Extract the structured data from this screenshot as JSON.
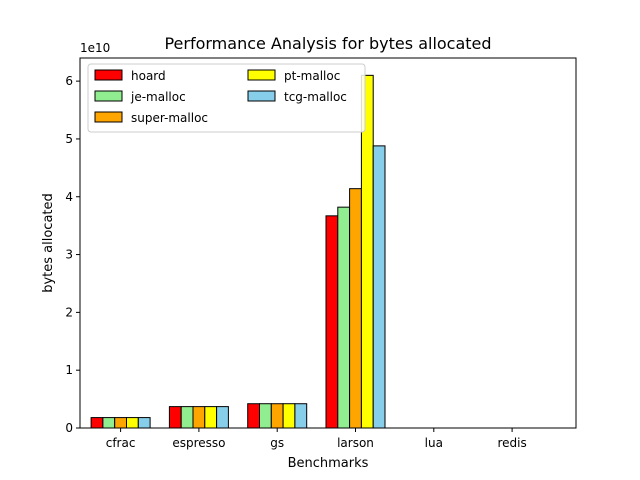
{
  "chart_data": {
    "type": "bar",
    "title": "Performance Analysis for bytes allocated",
    "xlabel": "Benchmarks",
    "ylabel": "bytes allocated",
    "y_multiplier_label": "1e10",
    "categories": [
      "cfrac",
      "espresso",
      "gs",
      "larson",
      "lua",
      "redis"
    ],
    "yticks": [
      0,
      1,
      2,
      3,
      4,
      5,
      6
    ],
    "ylim": [
      0,
      6.4
    ],
    "grid": false,
    "legend_position": "top-left",
    "legend_columns": 2,
    "series": [
      {
        "name": "hoard",
        "color": "#ff0000",
        "values": [
          0.18,
          0.37,
          0.42,
          3.67,
          0.0,
          0.0
        ]
      },
      {
        "name": "je-malloc",
        "color": "#90ee90",
        "values": [
          0.18,
          0.37,
          0.42,
          3.82,
          0.0,
          0.0
        ]
      },
      {
        "name": "super-malloc",
        "color": "#ffa500",
        "values": [
          0.18,
          0.37,
          0.42,
          4.14,
          0.0,
          0.0
        ]
      },
      {
        "name": "pt-malloc",
        "color": "#ffff00",
        "values": [
          0.18,
          0.37,
          0.42,
          6.1,
          0.0,
          0.0
        ]
      },
      {
        "name": "tcg-malloc",
        "color": "#87ceeb",
        "values": [
          0.18,
          0.37,
          0.42,
          4.88,
          0.0,
          0.0
        ]
      }
    ]
  }
}
